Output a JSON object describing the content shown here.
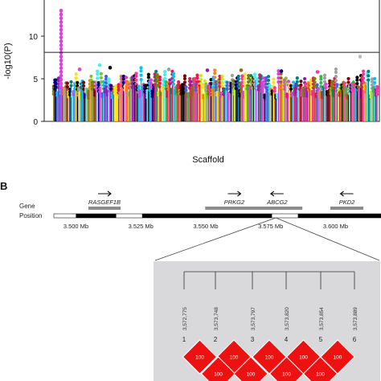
{
  "panel_b_label": "B",
  "chart_data": [
    {
      "type": "scatter",
      "subtype": "manhattan",
      "title": "",
      "xlabel": "Scaffold",
      "ylabel": "-log10(P)",
      "ylim": [
        0,
        14
      ],
      "yticks": [
        0,
        5,
        10
      ],
      "threshold": 8.1,
      "grid": false,
      "legend": "none",
      "top_hit": {
        "max_value": 13.2,
        "color": "#e040e0"
      },
      "notable_peaks": [
        7.6,
        6.6,
        6.3,
        6.1,
        6.1,
        6.0,
        6.0,
        5.9,
        5.8
      ],
      "typical_range": [
        3.5,
        5.5
      ],
      "series_colors": [
        "#e6194b",
        "#3cb44b",
        "#4363d8",
        "#f58231",
        "#911eb4",
        "#46f0f0",
        "#f032e6",
        "#bcf60c",
        "#008080",
        "#9a6324",
        "#000000",
        "#800000",
        "#ffe119",
        "#808000",
        "#000075",
        "#e040e0",
        "#00c0ff",
        "#ff7f00",
        "#7fbf3f",
        "#ff3399",
        "#a0a0a0"
      ]
    },
    {
      "type": "diagram",
      "gene_row_label": "Gene",
      "position_row_label": "Position",
      "genes": [
        {
          "name": "RASGEF1B",
          "start": 3.5085,
          "end": 3.5135,
          "direction": "right"
        },
        {
          "name": "PRKG2",
          "start": 3.5535,
          "end": 3.5685,
          "direction": "right"
        },
        {
          "name": "ABCG2",
          "start": 3.5715,
          "end": 3.5835,
          "direction": "left"
        },
        {
          "name": "PKD2",
          "start": 3.6017,
          "end": 3.607,
          "direction": "left"
        }
      ],
      "position_ticks": [
        {
          "value": 3.5,
          "label": "3.500 Mb"
        },
        {
          "value": 3.525,
          "label": "3.525 Mb"
        },
        {
          "value": 3.55,
          "label": "3.550 Mb"
        },
        {
          "value": 3.575,
          "label": "3.575 Mb"
        },
        {
          "value": 3.6,
          "label": "3.600 Mb"
        }
      ],
      "axis_range": [
        3.4915,
        3.6175
      ],
      "dark_segments": [
        [
          3.5,
          3.5155
        ],
        [
          3.5255,
          3.5525
        ],
        [
          3.5525,
          3.5755
        ],
        [
          3.5855,
          3.6175
        ]
      ],
      "zoom_point": 3.577
    },
    {
      "type": "heatmap",
      "subtype": "ld-block",
      "snps": [
        {
          "index": "1",
          "position": "3,572,775"
        },
        {
          "index": "2",
          "position": "3,573,748"
        },
        {
          "index": "3",
          "position": "3,573,797"
        },
        {
          "index": "4",
          "position": "3,573,820"
        },
        {
          "index": "5",
          "position": "3,573,854"
        },
        {
          "index": "6",
          "position": "3,573,889"
        }
      ],
      "pair_values": {
        "adjacent": [
          "100",
          "100",
          "100",
          "100",
          "100"
        ],
        "second_row": [
          "100",
          "100",
          "100",
          "100"
        ]
      },
      "cell_color": "#ee1111",
      "background_color": "#d9d9dc"
    }
  ]
}
